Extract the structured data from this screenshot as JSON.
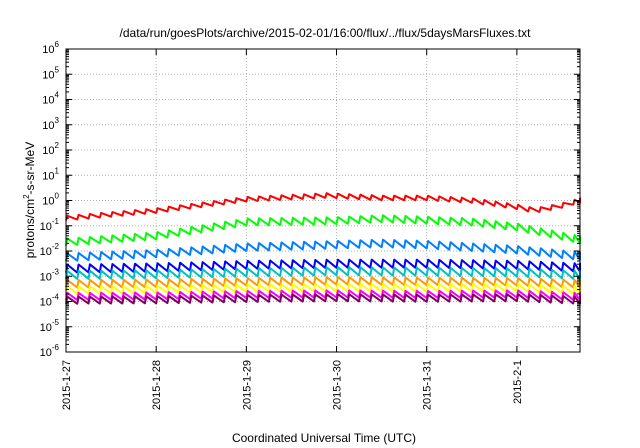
{
  "chart_data": {
    "type": "line",
    "title": "/data/run/goesPlots/archive/2015-02-01/16:00/flux/../flux/5daysMarsFluxes.txt",
    "xlabel": "Coordinated Universal Time (UTC)",
    "ylabel": {
      "prefix": "protons/cm",
      "superscript": "2",
      "suffix": "-s-sr-MeV"
    },
    "yscale": "log",
    "ylim_exponents": [
      -6,
      6
    ],
    "y_tick_labels": [
      {
        "base": "10",
        "exp": "6"
      },
      {
        "base": "10",
        "exp": "5"
      },
      {
        "base": "10",
        "exp": "4"
      },
      {
        "base": "10",
        "exp": "3"
      },
      {
        "base": "10",
        "exp": "2"
      },
      {
        "base": "10",
        "exp": "1"
      },
      {
        "base": "10",
        "exp": "0"
      },
      {
        "base": "10",
        "exp": "-1"
      },
      {
        "base": "10",
        "exp": "-2"
      },
      {
        "base": "10",
        "exp": "-3"
      },
      {
        "base": "10",
        "exp": "-4"
      },
      {
        "base": "10",
        "exp": "-5"
      },
      {
        "base": "10",
        "exp": "-6"
      }
    ],
    "x_tick_labels": [
      "2015-1-27",
      "2015-1-28",
      "2015-1-29",
      "2015-1-30",
      "2015-1-31",
      "2015-2-1"
    ],
    "xlim_days": [
      0,
      5.7
    ],
    "grid": true,
    "legend": "none",
    "sawtooth_period_days": 0.125,
    "series": [
      {
        "color": "#ff0000",
        "log_trend": [
          [
            0,
            -0.7
          ],
          [
            1,
            -0.4
          ],
          [
            2,
            0.05
          ],
          [
            2.9,
            0.2
          ],
          [
            3.5,
            0.1
          ],
          [
            4.0,
            0.1
          ],
          [
            4.5,
            0.0
          ],
          [
            5.0,
            -0.25
          ],
          [
            5.2,
            -0.4
          ],
          [
            5.5,
            -0.2
          ],
          [
            5.7,
            0.0
          ]
        ],
        "amplitude": 0.18
      },
      {
        "color": "#00ff00",
        "log_trend": [
          [
            0,
            -1.65
          ],
          [
            1,
            -1.4
          ],
          [
            2,
            -0.85
          ],
          [
            3,
            -0.8
          ],
          [
            3.5,
            -0.72
          ],
          [
            4.0,
            -0.78
          ],
          [
            4.5,
            -0.85
          ],
          [
            5.0,
            -1.05
          ],
          [
            5.7,
            -1.55
          ]
        ],
        "amplitude": 0.28
      },
      {
        "color": "#0080ff",
        "log_trend": [
          [
            0,
            -2.25
          ],
          [
            1,
            -2.1
          ],
          [
            2,
            -1.85
          ],
          [
            3,
            -1.75
          ],
          [
            3.5,
            -1.7
          ],
          [
            4.0,
            -1.75
          ],
          [
            4.5,
            -1.85
          ],
          [
            5.0,
            -1.95
          ],
          [
            5.7,
            -2.2
          ]
        ],
        "amplitude": 0.3
      },
      {
        "color": "#0000ff",
        "log_trend": [
          [
            0,
            -2.7
          ],
          [
            1,
            -2.65
          ],
          [
            2,
            -2.55
          ],
          [
            3,
            -2.5
          ],
          [
            4.0,
            -2.5
          ],
          [
            5.0,
            -2.55
          ],
          [
            5.7,
            -2.65
          ]
        ],
        "amplitude": 0.32
      },
      {
        "color": "#00c0c0",
        "log_trend": [
          [
            0,
            -2.95
          ],
          [
            1,
            -2.92
          ],
          [
            2,
            -2.85
          ],
          [
            3,
            -2.8
          ],
          [
            4.0,
            -2.82
          ],
          [
            5.0,
            -2.85
          ],
          [
            5.7,
            -2.95
          ]
        ],
        "amplitude": 0.32
      },
      {
        "color": "#ff9900",
        "log_trend": [
          [
            0,
            -3.3
          ],
          [
            1,
            -3.28
          ],
          [
            2,
            -3.22
          ],
          [
            3,
            -3.18
          ],
          [
            4.0,
            -3.2
          ],
          [
            5.0,
            -3.22
          ],
          [
            5.7,
            -3.3
          ]
        ],
        "amplitude": 0.3
      },
      {
        "color": "#ffff00",
        "log_trend": [
          [
            0,
            -3.55
          ],
          [
            1,
            -3.52
          ],
          [
            2,
            -3.47
          ],
          [
            3,
            -3.45
          ],
          [
            4.0,
            -3.45
          ],
          [
            5.0,
            -3.45
          ],
          [
            5.7,
            -3.55
          ]
        ],
        "amplitude": 0.3
      },
      {
        "color": "#ff00ff",
        "log_trend": [
          [
            0,
            -3.8
          ],
          [
            1,
            -3.78
          ],
          [
            2,
            -3.72
          ],
          [
            3,
            -3.7
          ],
          [
            4.0,
            -3.72
          ],
          [
            5.0,
            -3.7
          ],
          [
            5.7,
            -3.8
          ]
        ],
        "amplitude": 0.28
      },
      {
        "color": "#800060",
        "log_trend": [
          [
            0,
            -3.95
          ],
          [
            1,
            -3.93
          ],
          [
            2,
            -3.88
          ],
          [
            3,
            -3.85
          ],
          [
            4.0,
            -3.87
          ],
          [
            5.0,
            -3.85
          ],
          [
            5.7,
            -3.95
          ]
        ],
        "amplitude": 0.28
      }
    ]
  }
}
